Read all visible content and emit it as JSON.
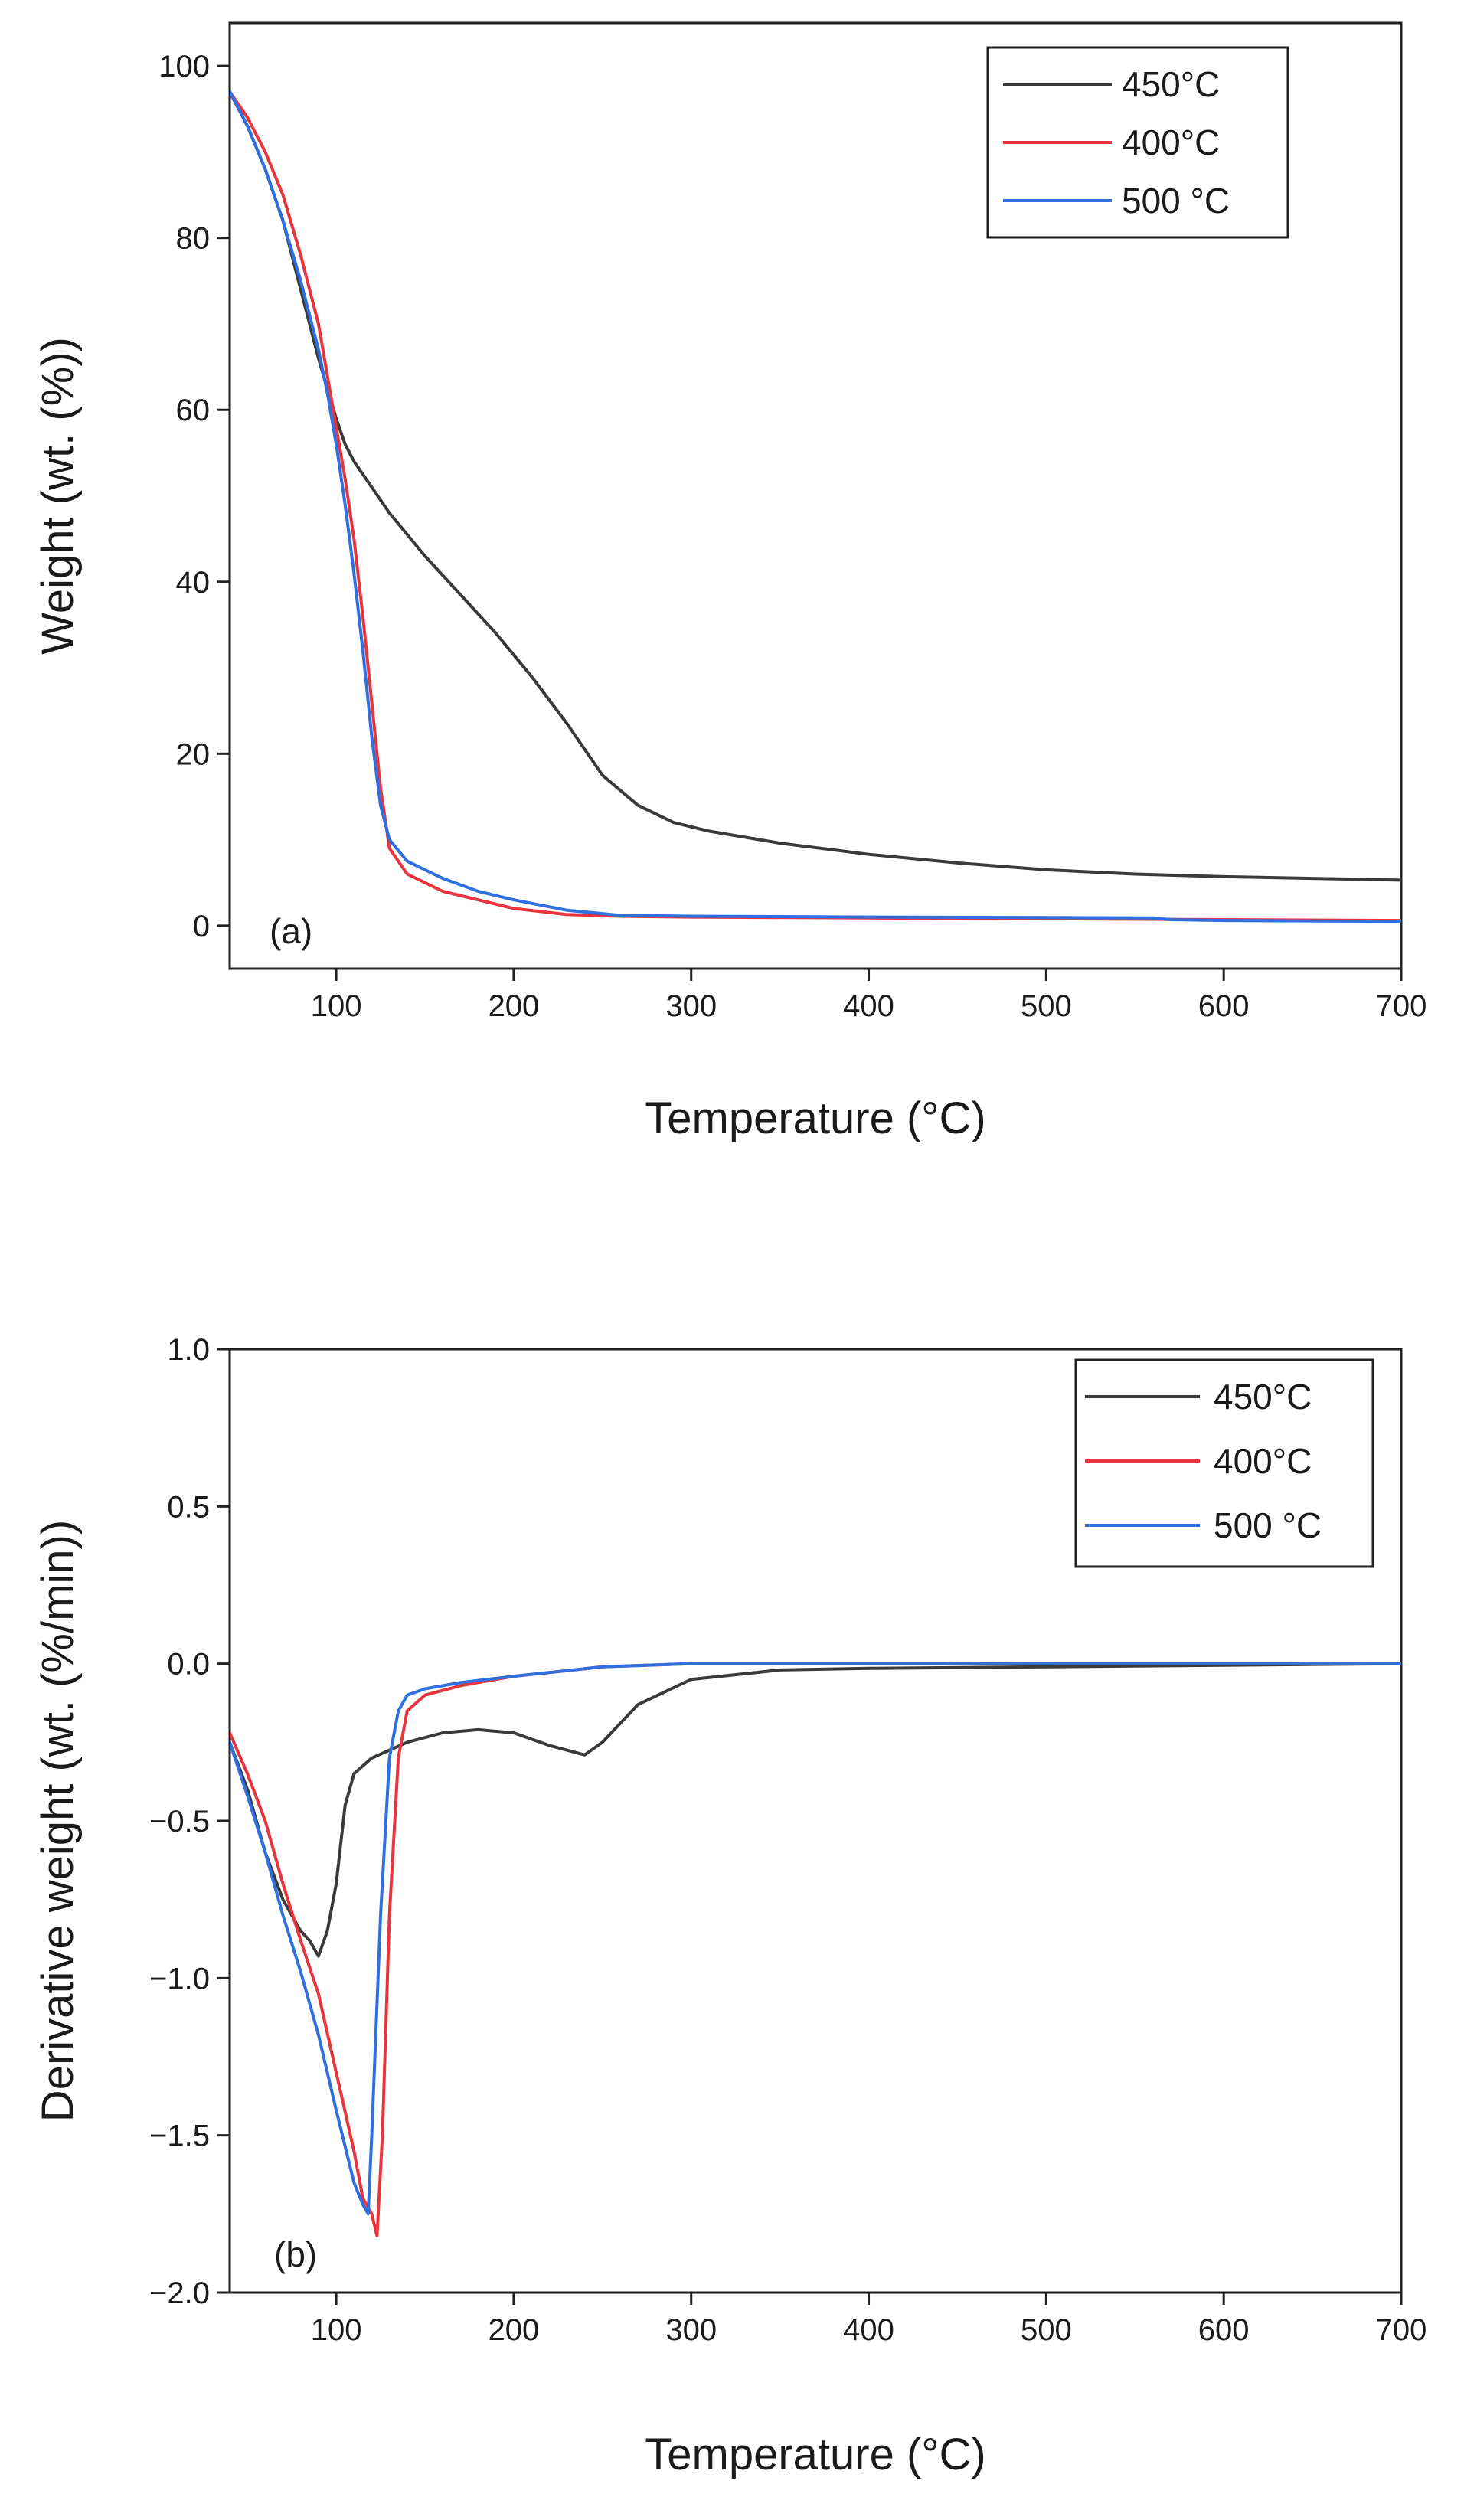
{
  "chart_data": [
    {
      "id": "a",
      "type": "line",
      "panel_label": "(a)",
      "xlabel": "Temperature (°C)",
      "ylabel": "Weight (wt. (%))",
      "xlim": [
        40,
        700
      ],
      "ylim": [
        -5,
        105
      ],
      "xticks": [
        100,
        200,
        300,
        400,
        500,
        600,
        700
      ],
      "xtick_labels": [
        "100",
        "200",
        "300",
        "400",
        "500",
        "600",
        "700"
      ],
      "yticks": [
        0,
        20,
        40,
        60,
        80,
        100
      ],
      "ytick_labels": [
        "0",
        "20",
        "40",
        "60",
        "80",
        "100"
      ],
      "legend_position": "top-right",
      "series": [
        {
          "name": "450°C",
          "color": "#3a3a3a",
          "x": [
            40,
            50,
            60,
            70,
            80,
            90,
            100,
            105,
            110,
            120,
            130,
            150,
            170,
            190,
            210,
            230,
            250,
            270,
            290,
            310,
            350,
            400,
            450,
            500,
            550,
            600,
            650,
            700
          ],
          "y": [
            97,
            93,
            88,
            82,
            74,
            66,
            59,
            56,
            54,
            51,
            48,
            43,
            38.5,
            34,
            29,
            23.5,
            17.5,
            14,
            12,
            11,
            9.6,
            8.3,
            7.3,
            6.5,
            6,
            5.7,
            5.5,
            5.3
          ]
        },
        {
          "name": "400°C",
          "color": "#e8343c",
          "x": [
            40,
            50,
            60,
            70,
            80,
            90,
            95,
            100,
            105,
            110,
            115,
            120,
            125,
            130,
            140,
            160,
            180,
            200,
            230,
            260,
            300,
            400,
            500,
            600,
            700
          ],
          "y": [
            97,
            94,
            90,
            85,
            78,
            70,
            64,
            58,
            52,
            45,
            36,
            26,
            16,
            9,
            6,
            4,
            3,
            2,
            1.3,
            1.1,
            1,
            0.9,
            0.8,
            0.7,
            0.6
          ]
        },
        {
          "name": "500 °C",
          "color": "#2f6fe0",
          "x": [
            40,
            50,
            60,
            70,
            80,
            90,
            95,
            100,
            105,
            110,
            115,
            120,
            125,
            130,
            140,
            160,
            180,
            200,
            230,
            260,
            300,
            400,
            500,
            560,
            570,
            600,
            700
          ],
          "y": [
            97,
            93,
            88,
            82,
            75,
            67,
            62,
            56,
            49,
            41,
            32,
            22,
            14,
            10,
            7.5,
            5.5,
            4,
            3,
            1.8,
            1.2,
            1.1,
            1,
            0.95,
            0.9,
            0.7,
            0.6,
            0.5
          ]
        }
      ]
    },
    {
      "id": "b",
      "type": "line",
      "panel_label": "(b)",
      "xlabel": "Temperature (°C)",
      "ylabel": "Derivative weight (wt. (%/min))",
      "xlim": [
        40,
        700
      ],
      "ylim": [
        -2.0,
        1.0
      ],
      "xticks": [
        100,
        200,
        300,
        400,
        500,
        600,
        700
      ],
      "xtick_labels": [
        "100",
        "200",
        "300",
        "400",
        "500",
        "600",
        "700"
      ],
      "yticks": [
        1.0,
        0.5,
        0.0,
        -0.5,
        -1.0,
        -1.5,
        -2.0
      ],
      "ytick_labels": [
        "1.0",
        "0.5",
        "0.0",
        "−0.5",
        "−1.0",
        "−1.5",
        "−2.0"
      ],
      "legend_position": "top-right",
      "series": [
        {
          "name": "450°C",
          "color": "#3a3a3a",
          "x": [
            40,
            50,
            60,
            70,
            80,
            85,
            90,
            95,
            100,
            105,
            110,
            120,
            140,
            160,
            180,
            200,
            220,
            240,
            250,
            270,
            300,
            350,
            400,
            500,
            600,
            700
          ],
          "y": [
            -0.25,
            -0.4,
            -0.6,
            -0.75,
            -0.85,
            -0.88,
            -0.93,
            -0.85,
            -0.7,
            -0.45,
            -0.35,
            -0.3,
            -0.25,
            -0.22,
            -0.21,
            -0.22,
            -0.26,
            -0.29,
            -0.25,
            -0.13,
            -0.05,
            -0.02,
            -0.015,
            -0.01,
            -0.005,
            0.0
          ]
        },
        {
          "name": "400°C",
          "color": "#e8343c",
          "x": [
            40,
            50,
            60,
            70,
            80,
            90,
            100,
            110,
            115,
            120,
            123,
            126,
            130,
            135,
            140,
            150,
            170,
            200,
            250,
            300,
            400,
            700
          ],
          "y": [
            -0.22,
            -0.35,
            -0.5,
            -0.7,
            -0.88,
            -1.05,
            -1.3,
            -1.55,
            -1.7,
            -1.75,
            -1.82,
            -1.5,
            -0.8,
            -0.3,
            -0.15,
            -0.1,
            -0.07,
            -0.04,
            -0.01,
            0.0,
            0.0,
            0.0
          ]
        },
        {
          "name": "500 °C",
          "color": "#2f6fe0",
          "x": [
            40,
            50,
            60,
            70,
            80,
            90,
            100,
            110,
            115,
            118,
            120,
            125,
            130,
            135,
            140,
            150,
            170,
            200,
            250,
            300,
            400,
            700
          ],
          "y": [
            -0.25,
            -0.42,
            -0.6,
            -0.8,
            -0.98,
            -1.18,
            -1.42,
            -1.65,
            -1.72,
            -1.75,
            -1.5,
            -0.8,
            -0.3,
            -0.15,
            -0.1,
            -0.08,
            -0.06,
            -0.04,
            -0.01,
            0.0,
            0.0,
            0.0
          ]
        }
      ]
    }
  ]
}
